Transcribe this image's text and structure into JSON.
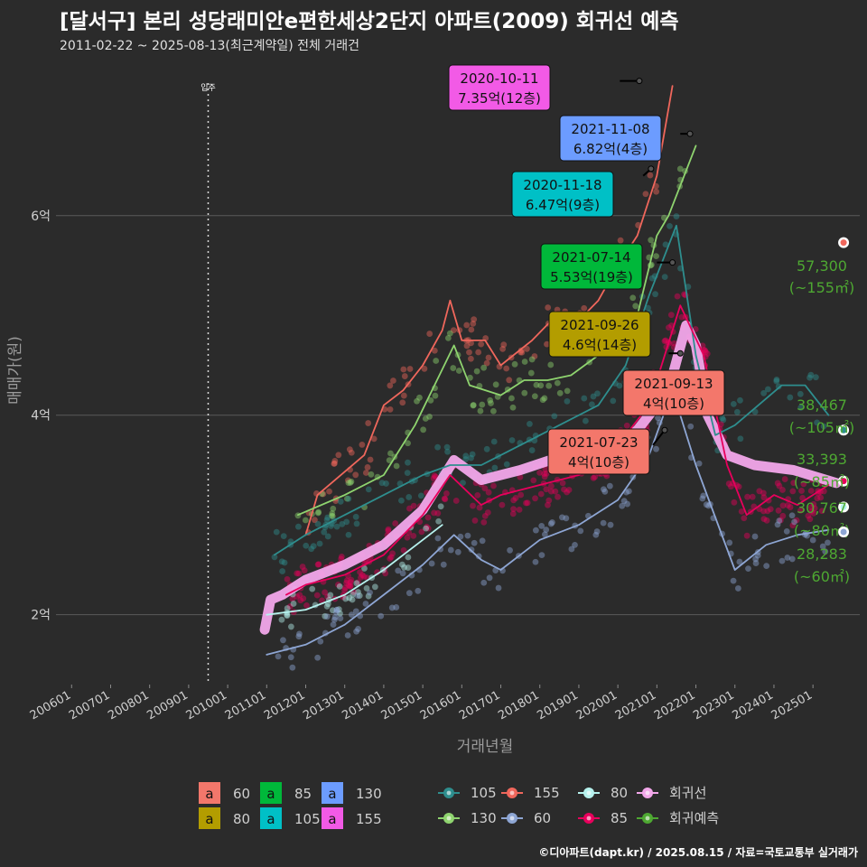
{
  "title": "[달서구] 본리 성당래미안e편한세상2단지 아파트(2009) 회귀선 예측",
  "subtitle": "2011-02-22 ~ 2025-08-13(최근계약일) 전체 거래건",
  "credit": "©디아파트(dapt.kr) / 2025.08.15 / 자료=국토교통부 실거래가",
  "chart_data": {
    "type": "line",
    "xlabel": "거래년월",
    "ylabel": "매매가(원)",
    "x_ticks": [
      "200601",
      "200701",
      "200801",
      "200901",
      "201001",
      "201101",
      "201201",
      "201301",
      "201401",
      "201501",
      "201601",
      "201701",
      "201801",
      "201901",
      "202001",
      "202101",
      "202201",
      "202301",
      "202401",
      "202501"
    ],
    "y_ticks": [
      {
        "value": 2,
        "label": "2억"
      },
      {
        "value": 4,
        "label": "4억"
      },
      {
        "value": 6,
        "label": "6억"
      }
    ],
    "ylim": [
      1.3,
      7.6
    ],
    "xlim": [
      2005.6,
      2026.2
    ],
    "vline": {
      "x": 2009.5,
      "label": "입주"
    },
    "series_colors": {
      "60": "#8ea6d4",
      "80": "#b6f2ee",
      "85": "#e8005c",
      "105": "#2e8e8e",
      "130": "#8fd46f",
      "155": "#f0675c",
      "회귀선": "#f2a7ea",
      "회귀예측": "#4ea832"
    },
    "series": [
      {
        "name": "회귀선",
        "points": [
          [
            2010.95,
            1.85
          ],
          [
            2011.1,
            2.15
          ],
          [
            2011.4,
            2.2
          ],
          [
            2012.0,
            2.35
          ],
          [
            2013.0,
            2.5
          ],
          [
            2014.0,
            2.7
          ],
          [
            2015.0,
            3.05
          ],
          [
            2015.8,
            3.55
          ],
          [
            2016.5,
            3.35
          ],
          [
            2017.5,
            3.45
          ],
          [
            2018.5,
            3.58
          ],
          [
            2019.5,
            3.6
          ],
          [
            2020.5,
            3.85
          ],
          [
            2021.3,
            4.25
          ],
          [
            2021.75,
            4.9
          ],
          [
            2022.0,
            4.7
          ],
          [
            2022.3,
            4.0
          ],
          [
            2022.8,
            3.6
          ],
          [
            2023.5,
            3.5
          ],
          [
            2024.5,
            3.45
          ],
          [
            2025.6,
            3.32
          ]
        ]
      },
      {
        "name": "155",
        "points": [
          [
            2012.0,
            2.8
          ],
          [
            2012.3,
            3.2
          ],
          [
            2013.5,
            3.6
          ],
          [
            2014.0,
            4.1
          ],
          [
            2014.5,
            4.25
          ],
          [
            2015.0,
            4.5
          ],
          [
            2015.5,
            4.85
          ],
          [
            2015.7,
            5.15
          ],
          [
            2016.0,
            4.75
          ],
          [
            2016.6,
            4.75
          ],
          [
            2017.0,
            4.5
          ],
          [
            2017.8,
            4.75
          ],
          [
            2018.3,
            4.95
          ],
          [
            2019.0,
            4.95
          ],
          [
            2019.5,
            5.15
          ],
          [
            2020.0,
            5.5
          ],
          [
            2020.5,
            5.8
          ],
          [
            2021.0,
            6.4
          ],
          [
            2021.4,
            7.3
          ]
        ]
      },
      {
        "name": "130",
        "points": [
          [
            2011.8,
            3.0
          ],
          [
            2013.0,
            3.2
          ],
          [
            2014.0,
            3.4
          ],
          [
            2014.8,
            3.9
          ],
          [
            2015.3,
            4.3
          ],
          [
            2015.8,
            4.7
          ],
          [
            2016.2,
            4.3
          ],
          [
            2017.0,
            4.2
          ],
          [
            2017.6,
            4.35
          ],
          [
            2018.2,
            4.35
          ],
          [
            2018.8,
            4.4
          ],
          [
            2019.5,
            4.6
          ],
          [
            2020.0,
            4.8
          ],
          [
            2020.5,
            5.0
          ],
          [
            2021.0,
            5.8
          ],
          [
            2021.3,
            6.0
          ],
          [
            2022.0,
            6.7
          ]
        ]
      },
      {
        "name": "105",
        "points": [
          [
            2011.2,
            2.6
          ],
          [
            2012.0,
            2.8
          ],
          [
            2013.0,
            3.0
          ],
          [
            2014.0,
            3.2
          ],
          [
            2015.0,
            3.4
          ],
          [
            2015.7,
            3.5
          ],
          [
            2016.5,
            3.5
          ],
          [
            2017.5,
            3.7
          ],
          [
            2018.5,
            3.9
          ],
          [
            2019.5,
            4.1
          ],
          [
            2020.2,
            4.5
          ],
          [
            2020.8,
            5.2
          ],
          [
            2021.5,
            5.9
          ],
          [
            2022.0,
            4.6
          ],
          [
            2022.5,
            3.8
          ],
          [
            2023.0,
            3.9
          ],
          [
            2023.6,
            4.1
          ],
          [
            2024.2,
            4.3
          ],
          [
            2024.8,
            4.3
          ],
          [
            2025.4,
            4.0
          ]
        ]
      },
      {
        "name": "85",
        "points": [
          [
            2011.5,
            2.2
          ],
          [
            2012.0,
            2.3
          ],
          [
            2013.0,
            2.4
          ],
          [
            2014.0,
            2.6
          ],
          [
            2015.0,
            3.0
          ],
          [
            2015.7,
            3.4
          ],
          [
            2016.5,
            3.1
          ],
          [
            2017.0,
            3.2
          ],
          [
            2018.0,
            3.3
          ],
          [
            2019.0,
            3.4
          ],
          [
            2020.0,
            3.7
          ],
          [
            2020.8,
            4.1
          ],
          [
            2021.6,
            5.1
          ],
          [
            2022.2,
            4.6
          ],
          [
            2022.8,
            3.5
          ],
          [
            2023.3,
            3.0
          ],
          [
            2024.0,
            3.2
          ],
          [
            2024.6,
            3.1
          ],
          [
            2025.4,
            3.3
          ]
        ]
      },
      {
        "name": "80",
        "points": [
          [
            2011.0,
            2.0
          ],
          [
            2012.0,
            2.05
          ],
          [
            2013.0,
            2.2
          ],
          [
            2014.0,
            2.45
          ],
          [
            2015.0,
            2.75
          ],
          [
            2015.5,
            2.9
          ]
        ]
      },
      {
        "name": "60",
        "points": [
          [
            2011.0,
            1.6
          ],
          [
            2012.0,
            1.7
          ],
          [
            2013.0,
            1.9
          ],
          [
            2014.0,
            2.2
          ],
          [
            2015.0,
            2.5
          ],
          [
            2015.8,
            2.8
          ],
          [
            2016.5,
            2.55
          ],
          [
            2017.0,
            2.45
          ],
          [
            2018.0,
            2.75
          ],
          [
            2019.0,
            2.9
          ],
          [
            2020.0,
            3.15
          ],
          [
            2020.8,
            3.6
          ],
          [
            2021.4,
            4.25
          ],
          [
            2022.0,
            3.5
          ],
          [
            2023.0,
            2.45
          ],
          [
            2023.8,
            2.7
          ],
          [
            2024.6,
            2.8
          ],
          [
            2025.4,
            2.85
          ]
        ]
      }
    ],
    "callouts": [
      {
        "date": "2020-10-11",
        "value": "7.35억(12층)",
        "fill": "#f25ae6",
        "line": [
          [
            2020.05,
            7.35
          ],
          [
            2020.55,
            7.35
          ]
        ]
      },
      {
        "date": "2021-11-08",
        "value": "6.82억(4층)",
        "fill": "#6c9cff",
        "line": [
          [
            2021.6,
            6.82
          ],
          [
            2021.85,
            6.82
          ]
        ]
      },
      {
        "date": "2020-11-18",
        "value": "6.47억(9층)",
        "fill": "#00c0c6",
        "line": [
          [
            2020.65,
            6.4
          ],
          [
            2020.85,
            6.47
          ]
        ]
      },
      {
        "date": "2021-07-14",
        "value": "5.53억(19층)",
        "fill": "#00b83a",
        "line": [
          [
            2021.0,
            5.53
          ],
          [
            2021.4,
            5.53
          ]
        ]
      },
      {
        "date": "2021-09-26",
        "value": "4.6억(14층)",
        "fill": "#b39d00",
        "line": [
          [
            2021.3,
            4.62
          ],
          [
            2021.6,
            4.62
          ]
        ]
      },
      {
        "date": "2021-09-13",
        "value": "4억(10층)",
        "fill": "#f3776b",
        "line": [
          [
            2021.5,
            4.1
          ],
          [
            2021.7,
            4.1
          ]
        ]
      },
      {
        "date": "2021-07-23",
        "value": "4억(10층)",
        "fill": "#f3776b",
        "line": [
          [
            2020.9,
            3.7
          ],
          [
            2021.2,
            3.85
          ]
        ]
      }
    ],
    "predictions": [
      {
        "price": "57,300",
        "area": "(~155㎡)",
        "y": 5.73,
        "color": "#f0675c"
      },
      {
        "price": "38,467",
        "area": "(~105㎡)",
        "y": 3.85,
        "color": "#2e8e8e"
      },
      {
        "price": "33,393",
        "area": "(~85㎡)",
        "y": 3.34,
        "color": "#e8005c"
      },
      {
        "price": "30,767",
        "area": "(~80㎡)",
        "y": 3.08,
        "color": "#b6f2ee"
      },
      {
        "price": "28,283",
        "area": "(~60㎡)",
        "y": 2.83,
        "color": "#8ea6d4"
      }
    ],
    "legend_fill": [
      {
        "label": "60",
        "color": "#f3776b"
      },
      {
        "label": "85",
        "color": "#00b83a"
      },
      {
        "label": "130",
        "color": "#6c9cff"
      },
      {
        "label": "80",
        "color": "#b39d00"
      },
      {
        "label": "105",
        "color": "#00c0c6"
      },
      {
        "label": "155",
        "color": "#f25ae6"
      }
    ],
    "legend_line": [
      {
        "label": "105",
        "color": "#2e8e8e"
      },
      {
        "label": "155",
        "color": "#f0675c"
      },
      {
        "label": "80",
        "color": "#b6f2ee"
      },
      {
        "label": "회귀선",
        "color": "#f2a7ea"
      },
      {
        "label": "130",
        "color": "#8fd46f"
      },
      {
        "label": "60",
        "color": "#8ea6d4"
      },
      {
        "label": "85",
        "color": "#e8005c"
      },
      {
        "label": "회귀예측",
        "color": "#4ea832"
      }
    ]
  }
}
